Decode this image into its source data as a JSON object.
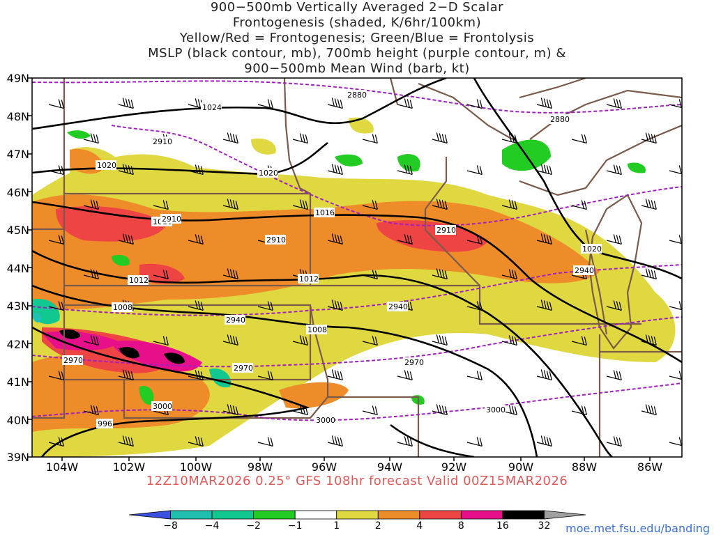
{
  "title_lines": [
    "900−500mb Vertically Averaged 2−D Scalar",
    "Frontogenesis (shaded, K/6hr/100km)",
    "Yellow/Red = Frontogenesis;  Green/Blue = Frontolysis",
    "MSLP (black contour, mb), 700mb height (purple contour, m) &",
    "900−500mb Mean Wind (barb, kt)"
  ],
  "valid_text": "12Z10MAR2026 0.25° GFS 108hr forecast Valid 00Z15MAR2026",
  "credit": "moe.met.fsu.edu/banding",
  "lat_labels": [
    "49N",
    "48N",
    "47N",
    "46N",
    "45N",
    "44N",
    "43N",
    "42N",
    "41N",
    "40N",
    "39N"
  ],
  "lon_labels": [
    "104W",
    "102W",
    "100W",
    "98W",
    "96W",
    "94W",
    "92W",
    "90W",
    "88W",
    "86W"
  ],
  "mslp_labels": [
    "1024",
    "1020",
    "1020",
    "1016",
    "1016",
    "1012",
    "1012",
    "1008",
    "1008",
    "1020",
    "996"
  ],
  "height_labels": [
    "2880",
    "2880",
    "2910",
    "2910",
    "2910",
    "2910",
    "2940",
    "2940",
    "2940",
    "2970",
    "2970",
    "2970",
    "3000",
    "3000",
    "3000"
  ],
  "colorbar": {
    "labels": [
      "−8",
      "−4",
      "−2",
      "−1",
      "1",
      "2",
      "4",
      "8",
      "16",
      "32"
    ],
    "colors": [
      "#3b4fe0",
      "#20c0b0",
      "#10c890",
      "#22cc22",
      "#ffffff",
      "#e0d840",
      "#ee8c2a",
      "#ee4444",
      "#e8108a",
      "#000000",
      "#a0a0a0"
    ]
  },
  "colors": {
    "yellow": "#e0d840",
    "orange": "#ee8c2a",
    "red": "#ee4444",
    "magenta": "#e8108a",
    "green": "#22cc22",
    "teal": "#10c890",
    "cyan": "#20c0b0",
    "black": "#000000",
    "state_border": "#7a5a4a",
    "height_contour": "#a020c0"
  }
}
